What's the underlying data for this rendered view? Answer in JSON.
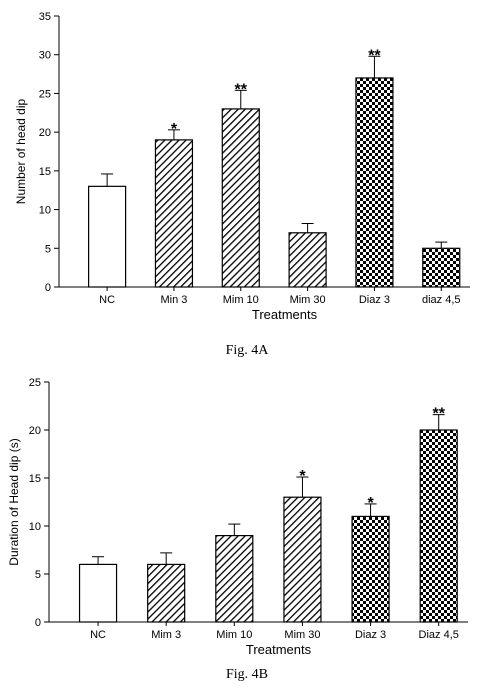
{
  "chart_data": [
    {
      "type": "bar",
      "title": "",
      "xlabel": "Treatments",
      "ylabel": "Number of head dip",
      "ylim": [
        0,
        35
      ],
      "yticks": [
        0,
        5,
        10,
        15,
        20,
        25,
        30,
        35
      ],
      "grid": false,
      "categories": [
        "NC",
        "Min 3",
        "Mim 10",
        "Mim 30",
        "Diaz 3",
        "diaz 4,5"
      ],
      "values": [
        13,
        19,
        23,
        7,
        27,
        5
      ],
      "errors": [
        1.6,
        1.3,
        2.4,
        1.2,
        2.8,
        0.8
      ],
      "significance": [
        "",
        "*",
        "**",
        "",
        "**",
        ""
      ],
      "patterns": [
        "white",
        "hatch",
        "hatch",
        "hatch",
        "checker",
        "checker"
      ]
    },
    {
      "type": "bar",
      "title": "",
      "xlabel": "Treatments",
      "ylabel": "Duration of Head dip (s)",
      "ylim": [
        0,
        25
      ],
      "yticks": [
        0,
        5,
        10,
        15,
        20,
        25
      ],
      "grid": false,
      "categories": [
        "NC",
        "Mim 3",
        "Mim 10",
        "Mim 30",
        "Diaz 3",
        "Diaz 4,5"
      ],
      "values": [
        6,
        6,
        9,
        13,
        11,
        20
      ],
      "errors": [
        0.8,
        1.2,
        1.2,
        2.1,
        1.3,
        1.6
      ],
      "significance": [
        "",
        "",
        "",
        "*",
        "*",
        "**"
      ],
      "patterns": [
        "white",
        "hatch",
        "hatch",
        "hatch",
        "checker",
        "checker"
      ]
    }
  ],
  "captions": {
    "a": "Fig. 4A",
    "b": "Fig. 4B"
  }
}
